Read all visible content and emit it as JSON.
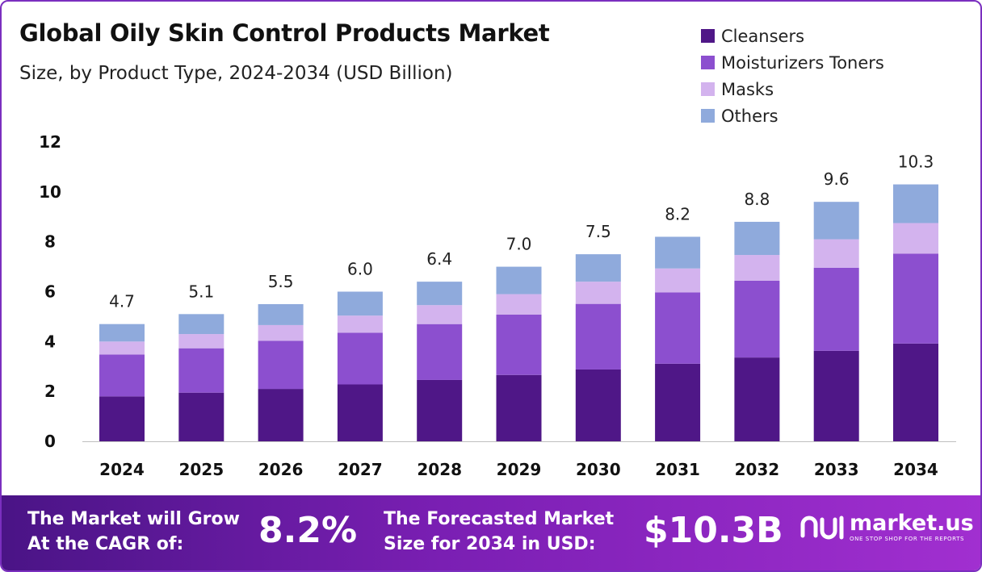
{
  "header": {
    "title": "Global Oily Skin Control Products Market",
    "subtitle": "Size, by Product Type, 2024-2034 (USD Billion)"
  },
  "legend": [
    {
      "label": "Cleansers",
      "color": "#4f1787"
    },
    {
      "label": "Moisturizers Toners",
      "color": "#8c4fcf"
    },
    {
      "label": "Masks",
      "color": "#d3b3ee"
    },
    {
      "label": "Others",
      "color": "#8faadc"
    }
  ],
  "chart_data": {
    "type": "bar",
    "stacked": true,
    "categories": [
      "2024",
      "2025",
      "2026",
      "2027",
      "2028",
      "2029",
      "2030",
      "2031",
      "2032",
      "2033",
      "2034"
    ],
    "series": [
      {
        "name": "Cleansers",
        "values": [
          1.8,
          1.95,
          2.1,
          2.28,
          2.46,
          2.66,
          2.88,
          3.11,
          3.36,
          3.63,
          3.92
        ]
      },
      {
        "name": "Moisturizers Toners",
        "values": [
          1.68,
          1.78,
          1.93,
          2.07,
          2.24,
          2.42,
          2.63,
          2.86,
          3.08,
          3.33,
          3.6
        ]
      },
      {
        "name": "Masks",
        "values": [
          0.52,
          0.57,
          0.63,
          0.69,
          0.76,
          0.82,
          0.89,
          0.96,
          1.03,
          1.14,
          1.23
        ]
      },
      {
        "name": "Others",
        "values": [
          0.7,
          0.8,
          0.84,
          0.96,
          0.94,
          1.1,
          1.1,
          1.27,
          1.33,
          1.5,
          1.55
        ]
      }
    ],
    "totals_labels": [
      "4.7",
      "5.1",
      "5.5",
      "6.0",
      "6.4",
      "7.0",
      "7.5",
      "8.2",
      "8.8",
      "9.6",
      "10.3"
    ],
    "y_ticks": [
      "0",
      "2",
      "4",
      "6",
      "8",
      "10",
      "12"
    ],
    "ylim": [
      0,
      12
    ],
    "grid": false,
    "legend_position": "top-right"
  },
  "footer": {
    "cagr_label_line1": "The Market will Grow",
    "cagr_label_line2": "At the CAGR of:",
    "cagr_value": "8.2%",
    "forecast_label_line1": "The Forecasted Market",
    "forecast_label_line2": "Size for 2034 in USD:",
    "forecast_value": "$10.3B",
    "brand_name": "market.us",
    "brand_tagline": "ONE STOP SHOP FOR THE REPORTS",
    "brand_icon": "market-us-logo-icon"
  }
}
